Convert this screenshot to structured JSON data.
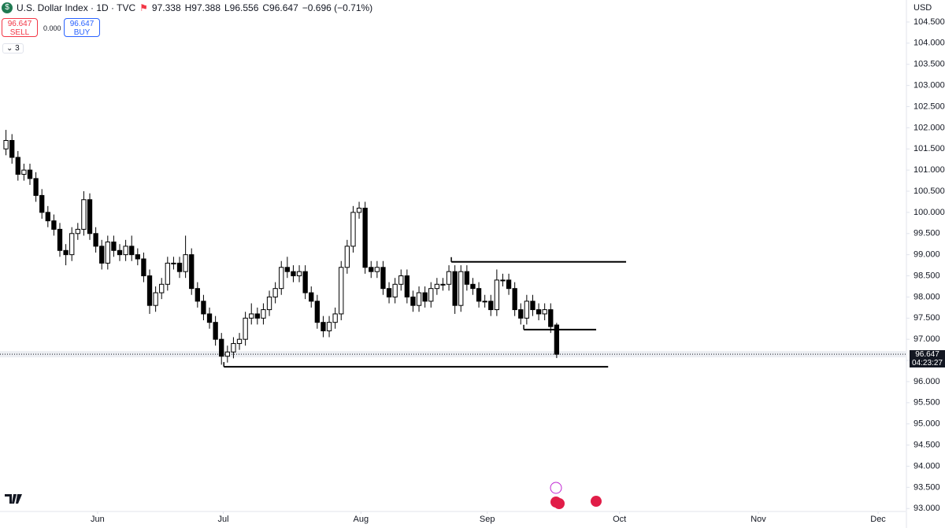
{
  "header": {
    "symbol": "U.S. Dollar Index · 1D · TVC",
    "open": "97.338",
    "high": "H97.388",
    "low": "L96.556",
    "close": "C96.647",
    "change": "−0.696 (−0.71%)"
  },
  "trade": {
    "sell_price": "96.647",
    "sell": "SELL",
    "spread": "0.000",
    "buy_price": "96.647",
    "buy": "BUY"
  },
  "indicators_count": "3",
  "currency": "USD",
  "last_price": {
    "label": "96.647",
    "countdown": "04:23:27"
  },
  "chart_data": {
    "type": "candlestick",
    "up_color": "#ffffff",
    "down_color": "#000000",
    "border_color": "#000000",
    "open": [
      101.5,
      101.7,
      101.3,
      100.9,
      101.0,
      100.8,
      100.4,
      100.0,
      99.8,
      99.6,
      99.1,
      99.0,
      99.5,
      99.6,
      100.3,
      99.5,
      99.2,
      98.8,
      99.3,
      99.1,
      99.0,
      99.2,
      99.0,
      98.9,
      98.5,
      97.8,
      98.1,
      98.3,
      98.8,
      98.8,
      98.6,
      99.0,
      98.2,
      97.9,
      97.6,
      97.4,
      97.0,
      96.6,
      96.7,
      96.9,
      97.0,
      97.5,
      97.6,
      97.5,
      97.7,
      98.0,
      98.2,
      98.7,
      98.6,
      98.5,
      98.6,
      98.1,
      97.9,
      97.4,
      97.2,
      97.4,
      97.6,
      98.7,
      99.2,
      100.0,
      100.1,
      98.7,
      98.6,
      98.7,
      98.2,
      98.0,
      98.3,
      98.5,
      98.0,
      97.8,
      98.1,
      97.9,
      98.2,
      98.3,
      98.3,
      98.6,
      97.8,
      98.6,
      98.3,
      98.2,
      97.9,
      97.9,
      97.7,
      98.4,
      98.4,
      98.2,
      97.7,
      97.5,
      97.9,
      97.7,
      97.6,
      97.7,
      97.338
    ],
    "high": [
      101.95,
      101.85,
      101.45,
      101.15,
      101.15,
      100.95,
      100.55,
      100.15,
      99.95,
      99.75,
      99.25,
      99.65,
      99.75,
      100.5,
      100.45,
      99.65,
      99.35,
      99.45,
      99.45,
      99.25,
      99.35,
      99.45,
      99.15,
      99.05,
      98.65,
      98.25,
      98.45,
      98.95,
      98.95,
      98.95,
      99.45,
      99.15,
      98.35,
      98.05,
      97.75,
      97.55,
      97.15,
      96.85,
      97.05,
      97.15,
      97.65,
      97.85,
      97.75,
      97.85,
      98.15,
      98.35,
      98.85,
      98.95,
      98.75,
      98.75,
      98.75,
      98.25,
      98.05,
      97.55,
      97.55,
      97.75,
      98.85,
      99.35,
      100.15,
      100.25,
      100.25,
      98.85,
      98.85,
      98.85,
      98.35,
      98.45,
      98.65,
      98.65,
      98.15,
      98.25,
      98.25,
      98.35,
      98.45,
      98.45,
      98.75,
      98.75,
      98.75,
      98.75,
      98.45,
      98.35,
      98.05,
      98.05,
      98.65,
      98.55,
      98.55,
      98.35,
      97.85,
      98.05,
      98.05,
      97.85,
      97.85,
      97.85,
      97.388
    ],
    "low": [
      101.35,
      101.15,
      100.75,
      100.75,
      100.65,
      100.25,
      99.85,
      99.65,
      99.45,
      98.95,
      98.75,
      98.85,
      99.35,
      99.45,
      99.35,
      99.05,
      98.65,
      98.65,
      98.95,
      98.85,
      98.85,
      98.85,
      98.75,
      98.35,
      97.6,
      97.65,
      97.95,
      98.15,
      98.65,
      98.45,
      98.45,
      98.05,
      97.75,
      97.45,
      97.25,
      96.85,
      96.4,
      96.45,
      96.55,
      96.75,
      96.85,
      97.35,
      97.35,
      97.35,
      97.55,
      97.85,
      98.05,
      98.45,
      98.35,
      98.35,
      97.95,
      97.75,
      97.25,
      97.05,
      97.05,
      97.25,
      97.45,
      98.55,
      99.05,
      99.85,
      98.55,
      98.45,
      98.45,
      98.05,
      97.85,
      97.85,
      98.15,
      97.85,
      97.65,
      97.65,
      97.75,
      97.75,
      98.05,
      98.15,
      98.15,
      97.6,
      97.65,
      98.15,
      98.05,
      97.75,
      97.75,
      97.55,
      97.55,
      98.25,
      98.05,
      97.55,
      97.35,
      97.35,
      97.55,
      97.45,
      97.45,
      97.15,
      96.556
    ],
    "close": [
      101.7,
      101.3,
      100.9,
      101.0,
      100.8,
      100.4,
      100.0,
      99.8,
      99.6,
      99.1,
      99.0,
      99.5,
      99.6,
      100.3,
      99.5,
      99.2,
      98.8,
      99.3,
      99.1,
      99.0,
      99.2,
      99.0,
      98.9,
      98.5,
      97.8,
      98.1,
      98.3,
      98.8,
      98.8,
      98.6,
      99.0,
      98.2,
      97.9,
      97.6,
      97.4,
      97.0,
      96.6,
      96.7,
      96.9,
      97.0,
      97.5,
      97.6,
      97.5,
      97.7,
      98.0,
      98.2,
      98.7,
      98.6,
      98.5,
      98.6,
      98.1,
      97.9,
      97.4,
      97.2,
      97.4,
      97.6,
      98.7,
      99.2,
      100.0,
      100.1,
      98.7,
      98.6,
      98.7,
      98.2,
      98.0,
      98.3,
      98.5,
      98.0,
      97.8,
      98.1,
      97.9,
      98.2,
      98.3,
      98.3,
      98.6,
      97.8,
      98.6,
      98.3,
      98.2,
      97.9,
      97.9,
      97.7,
      98.4,
      98.4,
      98.2,
      97.7,
      97.5,
      97.9,
      97.7,
      97.6,
      97.7,
      97.3,
      96.647
    ],
    "xlim": [
      -1,
      150.3
    ],
    "xticks": [
      {
        "value": 15.3,
        "label": "Jun"
      },
      {
        "value": 36.3,
        "label": "Jul"
      },
      {
        "value": 59.3,
        "label": "Aug"
      },
      {
        "value": 80.4,
        "label": "Sep"
      },
      {
        "value": 102.5,
        "label": "Oct"
      },
      {
        "value": 125.7,
        "label": "Nov"
      },
      {
        "value": 145.7,
        "label": "Dec"
      }
    ],
    "ylim": [
      92.93,
      105.02
    ],
    "yticks": [
      {
        "value": 104.5,
        "label": "104.500"
      },
      {
        "value": 104,
        "label": "104.000"
      },
      {
        "value": 103.5,
        "label": "103.500"
      },
      {
        "value": 103,
        "label": "103.000"
      },
      {
        "value": 102.5,
        "label": "102.500"
      },
      {
        "value": 102,
        "label": "102.000"
      },
      {
        "value": 101.5,
        "label": "101.500"
      },
      {
        "value": 101,
        "label": "101.000"
      },
      {
        "value": 100.5,
        "label": "100.500"
      },
      {
        "value": 100,
        "label": "100.000"
      },
      {
        "value": 99.5,
        "label": "99.500"
      },
      {
        "value": 99,
        "label": "99.000"
      },
      {
        "value": 98.5,
        "label": "98.500"
      },
      {
        "value": 98,
        "label": "98.000"
      },
      {
        "value": 97.5,
        "label": "97.500"
      },
      {
        "value": 97,
        "label": "97.000"
      },
      {
        "value": 96.5,
        "label": "96.500"
      },
      {
        "value": 96,
        "label": "96.000"
      },
      {
        "value": 95.5,
        "label": "95.500"
      },
      {
        "value": 95,
        "label": "95.000"
      },
      {
        "value": 94.5,
        "label": "94.500"
      },
      {
        "value": 94,
        "label": "94.000"
      },
      {
        "value": 93.5,
        "label": "93.500"
      },
      {
        "value": 93,
        "label": "93.000"
      }
    ],
    "grid": false,
    "drawings": [
      {
        "price": 98.83,
        "start": 74.4,
        "end": 103.6
      },
      {
        "price": 97.23,
        "start": 86.5,
        "end": 98.6
      },
      {
        "price": 96.35,
        "start": 36.4,
        "end": 100.6
      }
    ]
  }
}
